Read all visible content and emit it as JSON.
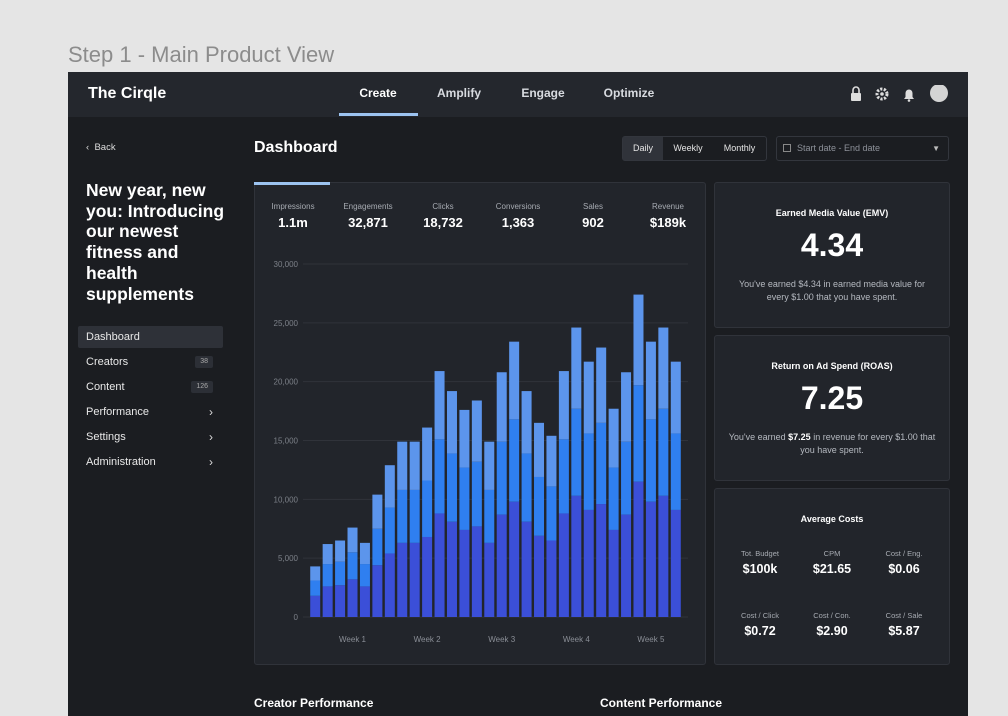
{
  "header": {
    "page_title": "Step 1 - Main Product View"
  },
  "nav": {
    "brand": "The Cirqle",
    "tabs": [
      "Create",
      "Amplify",
      "Engage",
      "Optimize"
    ]
  },
  "sidebar": {
    "back": "Back",
    "campaign_title": "New year, new you: Introducing our newest fitness and health supplements",
    "menu": [
      {
        "label": "Dashboard"
      },
      {
        "label": "Creators",
        "badge": 38
      },
      {
        "label": "Content",
        "badge": 126
      },
      {
        "label": "Performance"
      },
      {
        "label": "Settings"
      },
      {
        "label": "Administration"
      }
    ]
  },
  "dashboard": {
    "title": "Dashboard",
    "periods": [
      "Daily",
      "Weekly",
      "Monthly"
    ],
    "date_placeholder": "Start date - End date",
    "metrics": [
      {
        "label": "Impressions",
        "value": "1.1m"
      },
      {
        "label": "Engagements",
        "value": "32,871"
      },
      {
        "label": "Clicks",
        "value": "18,732"
      },
      {
        "label": "Conversions",
        "value": "1,363"
      },
      {
        "label": "Sales",
        "value": "902"
      },
      {
        "label": "Revenue",
        "value": "$189k"
      }
    ]
  },
  "emv": {
    "title": "Earned Media Value (EMV)",
    "value": "4.34",
    "text": "You've earned $4.34 in earned media value for every $1.00 that you have spent."
  },
  "roas": {
    "title": "Return on Ad Spend (ROAS)",
    "value": "7.25",
    "text_before": "You've earned ",
    "highlight": "$7.25",
    "text_after": " in revenue for every $1.00 that you have spent."
  },
  "costs": {
    "title": "Average Costs",
    "items": [
      {
        "label": "Tot. Budget",
        "value": "$100k"
      },
      {
        "label": "CPM",
        "value": "$21.65"
      },
      {
        "label": "Cost / Eng.",
        "value": "$0.06"
      },
      {
        "label": "Cost / Click",
        "value": "$0.72"
      },
      {
        "label": "Cost / Con.",
        "value": "$2.90"
      },
      {
        "label": "Cost / Sale",
        "value": "$5.87"
      }
    ]
  },
  "sections": [
    "Creator Performance",
    "Content Performance"
  ],
  "chart_data": {
    "type": "stacked_bar",
    "categories": [
      null,
      null,
      null,
      "Week 1",
      null,
      null,
      null,
      null,
      null,
      "Week 2",
      null,
      null,
      null,
      null,
      null,
      "Week 3",
      null,
      null,
      null,
      null,
      null,
      "Week 4",
      null,
      null,
      null,
      null,
      null,
      "Week 5",
      null,
      null
    ],
    "series": [
      {
        "color": "#3b4fd8",
        "values": [
          1800,
          2600,
          2700,
          3200,
          2600,
          4400,
          5400,
          6300,
          6300,
          6800,
          8800,
          8100,
          7400,
          7700,
          6300,
          8700,
          9800,
          8100,
          6900,
          6500,
          8800,
          10300,
          9100,
          9600,
          7400,
          8700,
          11500,
          9800,
          10300,
          9100
        ]
      },
      {
        "color": "#2f7ff0",
        "values": [
          1300,
          1900,
          2000,
          2300,
          1900,
          3100,
          3900,
          4500,
          4500,
          4800,
          6300,
          5800,
          5300,
          5500,
          4500,
          6200,
          7000,
          5800,
          5000,
          4600,
          6300,
          7400,
          6500,
          6900,
          5300,
          6200,
          8200,
          7000,
          7400,
          6500
        ]
      },
      {
        "color": "#5c95ec",
        "values": [
          1200,
          1700,
          1800,
          2100,
          1800,
          2900,
          3600,
          4100,
          4100,
          4500,
          5800,
          5300,
          4900,
          5200,
          4100,
          5900,
          6600,
          5300,
          4600,
          4300,
          5800,
          6900,
          6100,
          6400,
          5000,
          5900,
          7700,
          6600,
          6900,
          6100
        ]
      }
    ],
    "ylim": [
      0,
      30000
    ],
    "yticks": [
      0,
      {
        "value": 5000,
        "label": "5,000"
      },
      {
        "value": 10000,
        "label": "10,000"
      },
      {
        "value": 15000,
        "label": "15,000"
      },
      {
        "value": 20000,
        "label": "20,000"
      },
      {
        "value": 25000,
        "label": "25,000"
      },
      {
        "value": 30000,
        "label": "30,000"
      }
    ],
    "grid": true
  }
}
